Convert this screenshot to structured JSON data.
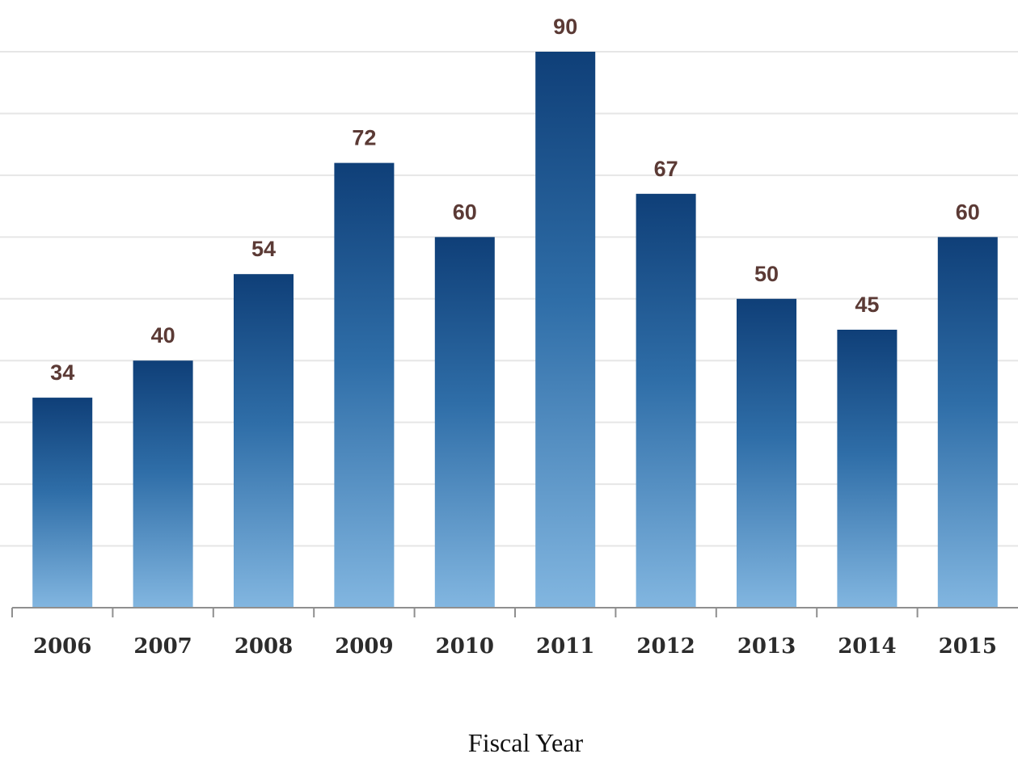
{
  "chart_data": {
    "type": "bar",
    "categories": [
      "2006",
      "2007",
      "2008",
      "2009",
      "2010",
      "2011",
      "2012",
      "2013",
      "2014",
      "2015"
    ],
    "values": [
      34,
      40,
      54,
      72,
      60,
      90,
      67,
      50,
      45,
      60
    ],
    "title": "",
    "xlabel": "Fiscal Year",
    "ylabel": "",
    "ylim": [
      0,
      90
    ],
    "grid": true,
    "legend": "none",
    "bar_color_top": "#0f3f78",
    "bar_color_bottom": "#7fb3de",
    "label_color": "#5b3a35"
  }
}
